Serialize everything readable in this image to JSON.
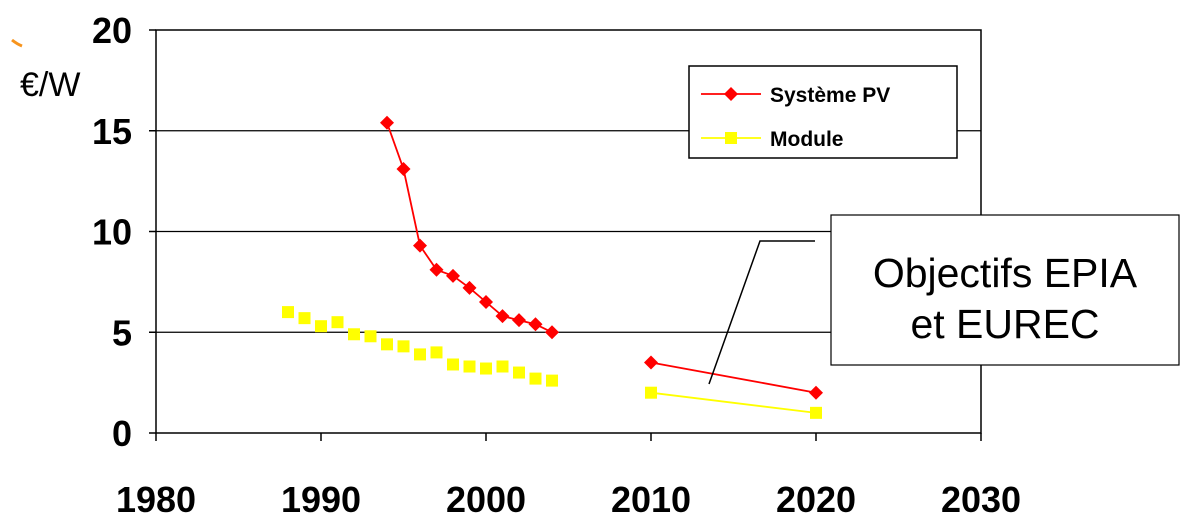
{
  "chart_data": {
    "type": "line",
    "title": "",
    "xlabel": "",
    "ylabel": "€/W",
    "xlim": [
      1980,
      2030
    ],
    "ylim": [
      0,
      20
    ],
    "x_ticks": [
      1980,
      1990,
      2000,
      2010,
      2020,
      2030
    ],
    "y_ticks": [
      0,
      5,
      10,
      15,
      20
    ],
    "grid": "horizontal",
    "legend_position": "top-right",
    "series": [
      {
        "name": "Système PV",
        "color": "#ff0000",
        "marker": "diamond",
        "segments": [
          {
            "x": [
              1994,
              1995,
              1996,
              1997,
              1998,
              1999,
              2000,
              2001,
              2002,
              2003,
              2004
            ],
            "y": [
              15.4,
              13.1,
              9.3,
              8.1,
              7.8,
              7.2,
              6.5,
              5.8,
              5.6,
              5.4,
              5.0
            ]
          },
          {
            "x": [
              2010,
              2020
            ],
            "y": [
              3.5,
              2.0
            ]
          }
        ]
      },
      {
        "name": "Module",
        "color": "#ffff00",
        "marker": "square",
        "segments": [
          {
            "x": [
              1988,
              1989,
              1990,
              1991,
              1992,
              1993,
              1994,
              1995,
              1996,
              1997,
              1998,
              1999,
              2000,
              2001,
              2002,
              2003,
              2004
            ],
            "y": [
              6.0,
              5.7,
              5.3,
              5.5,
              4.9,
              4.8,
              4.4,
              4.3,
              3.9,
              4.0,
              3.4,
              3.3,
              3.2,
              3.3,
              3.0,
              2.7,
              2.6
            ],
            "show_line": false
          },
          {
            "x": [
              2010,
              2020
            ],
            "y": [
              2.0,
              1.0
            ],
            "show_line": true
          }
        ]
      }
    ],
    "annotation": {
      "lines": [
        "Objectifs EPIA",
        "et EUREC"
      ]
    }
  }
}
